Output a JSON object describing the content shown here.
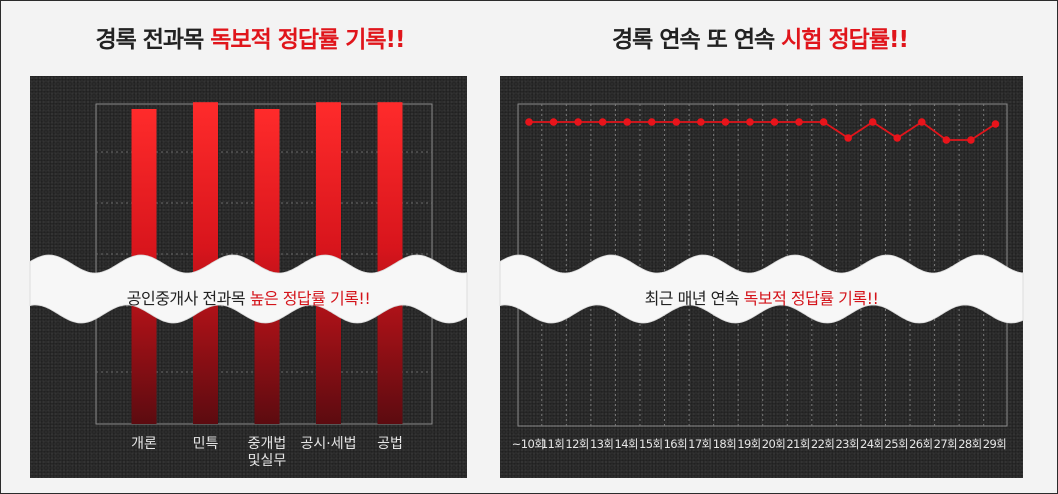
{
  "headings": {
    "left": {
      "normal": "경록 전과목 ",
      "highlight": "독보적 정답률 기록!!"
    },
    "right": {
      "normal": "경록 연속 또 연속 ",
      "highlight": "시험 정답률!!"
    }
  },
  "captions": {
    "left": {
      "normal": "공인중개사 전과목 ",
      "highlight": "높은 정답률 기록!!"
    },
    "right": {
      "normal": "최근 매년 연속 ",
      "highlight": "독보적 정답률 기록!!"
    }
  },
  "colors": {
    "accent": "#e0151b",
    "panel": "#2c2c2c",
    "bar_top": "#ff2a2a",
    "bar_bottom": "#5e0c10",
    "line": "#e0151b"
  },
  "chart_data": [
    {
      "type": "bar",
      "categories": [
        "개론",
        "민특",
        "중개법 및실무",
        "공시·세법",
        "공법"
      ],
      "values": [
        95,
        97,
        95,
        97,
        97
      ],
      "ylim": [
        0,
        100
      ],
      "grid": true
    },
    {
      "type": "line",
      "categories": [
        "~10회",
        "11회",
        "12회",
        "13회",
        "14회",
        "15회",
        "16회",
        "17회",
        "18회",
        "19회",
        "20회",
        "21회",
        "22회",
        "23회",
        "24회",
        "25회",
        "26회",
        "27회",
        "28회",
        "29회"
      ],
      "values": [
        100,
        100,
        100,
        100,
        100,
        100,
        100,
        100,
        100,
        100,
        100,
        100,
        100,
        92,
        100,
        92,
        100,
        91,
        91,
        99
      ],
      "ylim": [
        0,
        100
      ],
      "grid": true
    }
  ]
}
